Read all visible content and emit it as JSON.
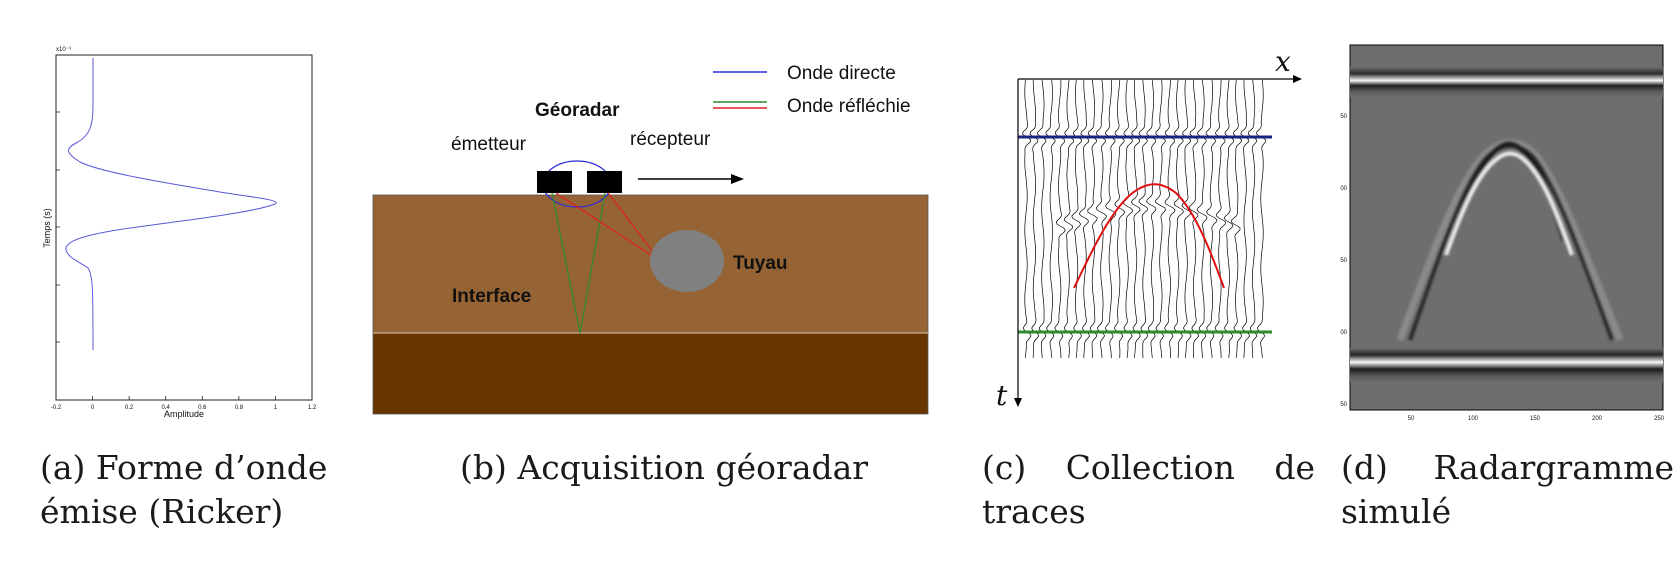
{
  "panel_a": {
    "caption_line1": "(a) Forme d’onde",
    "caption_line2": "émise (Ricker)",
    "x_label": "Amplitude",
    "y_label": "Temps (s)",
    "y_exponent": "x10⁻⁹",
    "x_ticks": [
      "-0.2",
      "0",
      "0.2",
      "0.4",
      "0.6",
      "0.8",
      "1",
      "1.2"
    ]
  },
  "panel_b": {
    "caption": "(b) Acquisition géoradar",
    "legend_direct": "Onde directe",
    "legend_reflected": "Onde réfléchie",
    "title_georadar": "Géoradar",
    "label_emitter": "émetteur",
    "label_receiver": "récepteur",
    "label_pipe": "Tuyau",
    "label_interface": "Interface",
    "colors": {
      "soil_top": "#966434",
      "soil_bottom": "#673600",
      "pipe": "#808080",
      "direct_wave": "#2b2bd8",
      "reflected_wave": "#e02020",
      "interface_wave": "#2e8b2e"
    }
  },
  "panel_c": {
    "caption_line1_a": "(c)",
    "caption_line1_b": "Collection",
    "caption_line1_c": "de",
    "caption_line2": "traces",
    "axis_x": "x",
    "axis_t": "t",
    "colors": {
      "direct": "#1a237e",
      "hyperbola": "#e01010",
      "interface": "#2e8b2e"
    }
  },
  "panel_d": {
    "caption_line1_a": "(d)",
    "caption_line1_b": "Radargramme",
    "caption_line2": "simulé",
    "x_ticks": [
      "50",
      "100",
      "150",
      "200",
      "250"
    ],
    "y_ticks": [
      "50",
      "100",
      "150",
      "200",
      "250"
    ]
  }
}
